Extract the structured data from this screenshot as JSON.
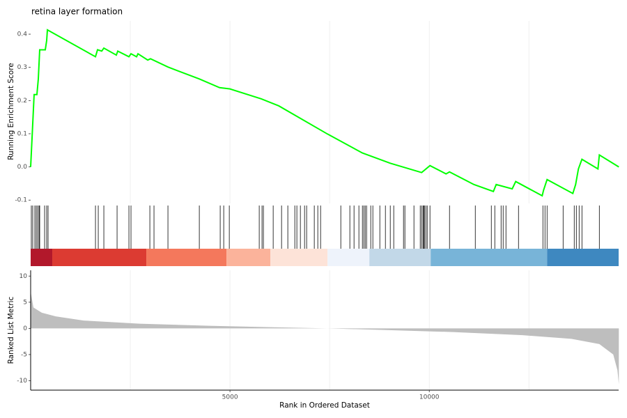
{
  "chart_data": [
    {
      "type": "line",
      "title": "retina layer formation",
      "ylabel": "Running Enrichment Score",
      "color": "#00ff00",
      "x": [
        0,
        35,
        87,
        157,
        192,
        227,
        367,
        402,
        420,
        1626,
        1678,
        1783,
        1836,
        2150,
        2185,
        2465,
        2517,
        2657,
        2692,
        2937,
        3007,
        3444,
        4231,
        4738,
        5000,
        5787,
        6224,
        7448,
        8322,
        9021,
        9808,
        10017,
        10420,
        10507,
        11119,
        11608,
        11678,
        12080,
        12168,
        12832,
        12867,
        12955,
        13601,
        13671,
        13741,
        13829,
        14231,
        14266,
        14755
      ],
      "values": [
        0,
        0.087,
        0.218,
        0.218,
        0.265,
        0.353,
        0.353,
        0.381,
        0.413,
        0.332,
        0.353,
        0.349,
        0.358,
        0.337,
        0.349,
        0.332,
        0.341,
        0.332,
        0.341,
        0.322,
        0.326,
        0.301,
        0.265,
        0.239,
        0.235,
        0.205,
        0.184,
        0.099,
        0.042,
        0.011,
        -0.017,
        0.004,
        -0.021,
        -0.015,
        -0.053,
        -0.074,
        -0.053,
        -0.066,
        -0.044,
        -0.087,
        -0.07,
        -0.038,
        -0.08,
        -0.053,
        -0.006,
        0.023,
        -0.006,
        0.036,
        0
      ],
      "xlim": [
        0,
        14750
      ],
      "ylim": [
        -0.11,
        0.44
      ],
      "yticks": [
        -0.1,
        {
          "value": 0,
          "label": "0.0"
        },
        0.1,
        0.2,
        0.3,
        0.4
      ],
      "xgrid": [
        2500,
        5000,
        7500,
        10000,
        12500
      ]
    },
    {
      "type": "rug",
      "color": "#000000",
      "x": [
        17,
        52,
        105,
        140,
        175,
        210,
        227,
        350,
        402,
        437,
        1626,
        1696,
        1836,
        2168,
        2465,
        2517,
        2990,
        3094,
        3444,
        4231,
        4755,
        4843,
        4983,
        5734,
        5804,
        5839,
        6084,
        6294,
        6451,
        6626,
        6678,
        6766,
        6871,
        6923,
        7115,
        7203,
        7273,
        7780,
        8007,
        8112,
        8234,
        8322,
        8357,
        8392,
        8427,
        8531,
        8584,
        8759,
        8899,
        9021,
        9108,
        9353,
        9388,
        9615,
        9773,
        9808,
        9843,
        9860,
        9878,
        9913,
        9948,
        10017,
        10507,
        11154,
        11556,
        11643,
        11801,
        11853,
        11923,
        12238,
        12850,
        12902,
        12955,
        13357,
        13636,
        13689,
        13759,
        13829,
        14266
      ],
      "xlim": [
        0,
        14750
      ],
      "band_edges": [
        0,
        542,
        2902,
        4913,
        6014,
        7448,
        8497,
        10035,
        12955,
        14750
      ],
      "band_colors": [
        "#b2182b",
        "#dc3b32",
        "#f4785c",
        "#fbb39b",
        "#fde3d8",
        "#eef3fb",
        "#c2d8e8",
        "#78b4d8",
        "#3e88c0"
      ]
    },
    {
      "type": "area",
      "ylabel": "Ranked List Metric",
      "xlabel": "Rank in Ordered Dataset",
      "color": "#bebebe",
      "x": [
        0,
        70,
        280,
        629,
        1329,
        2727,
        4476,
        6224,
        7448,
        8846,
        10594,
        12343,
        13566,
        14266,
        14615,
        14720,
        14755
      ],
      "values": [
        7,
        4,
        3,
        2.3,
        1.5,
        0.9,
        0.5,
        0.2,
        0,
        -0.3,
        -0.7,
        -1.3,
        -2,
        -3,
        -5,
        -8,
        -10.7
      ],
      "xlim": [
        0,
        14750
      ],
      "ylim": [
        -11.8,
        11.1
      ],
      "yticks": [
        -10,
        -5,
        0,
        5,
        10
      ],
      "xticks": [
        5000,
        10000
      ],
      "xgrid": [
        2500,
        5000,
        7500,
        10000,
        12500
      ]
    }
  ]
}
